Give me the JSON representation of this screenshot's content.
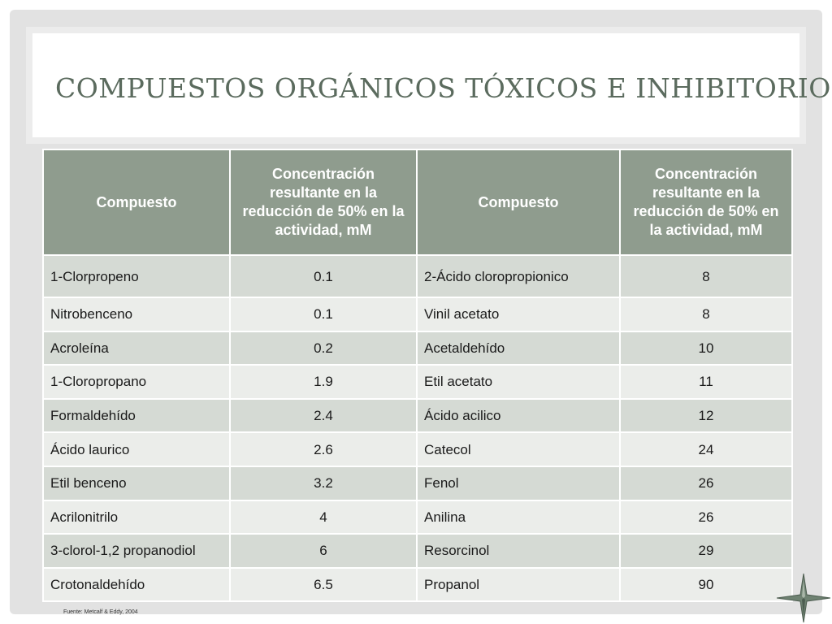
{
  "title": "COMPUESTOS ORGÁNICOS TÓXICOS E INHIBITORIOS",
  "table": {
    "headers": [
      "Compuesto",
      "Concentración resultante en la reducción de 50% en la actividad, mM",
      "Compuesto",
      "Concentración resultante en la reducción de 50% en la actividad, mM"
    ],
    "rows": [
      [
        "1-Clorpropeno",
        "0.1",
        "2-Ácido cloropropionico",
        "8"
      ],
      [
        "Nitrobenceno",
        "0.1",
        "Vinil acetato",
        "8"
      ],
      [
        "Acroleína",
        "0.2",
        "Acetaldehído",
        "10"
      ],
      [
        "1-Cloropropano",
        "1.9",
        "Etil acetato",
        "11"
      ],
      [
        "Formaldehído",
        "2.4",
        "Ácido acilico",
        "12"
      ],
      [
        "Ácido laurico",
        "2.6",
        "Catecol",
        "24"
      ],
      [
        "Etil benceno",
        "3.2",
        "Fenol",
        "26"
      ],
      [
        "Acrilonitrilo",
        "4",
        "Anilina",
        "26"
      ],
      [
        "3-clorol-1,2 propanodiol",
        "6",
        "Resorcinol",
        "29"
      ],
      [
        "Crotonaldehído",
        "6.5",
        "Propanol",
        "90"
      ]
    ]
  },
  "source": "Fuente: Metcalf  & Eddy, 2004",
  "colors": {
    "title": "#5b6b5e",
    "header_bg": "#8f9c8e",
    "row_odd": "#d5dad4",
    "row_even": "#ebedea",
    "frame": "#e2e2e2"
  },
  "icons": [
    "compass-star-icon"
  ]
}
